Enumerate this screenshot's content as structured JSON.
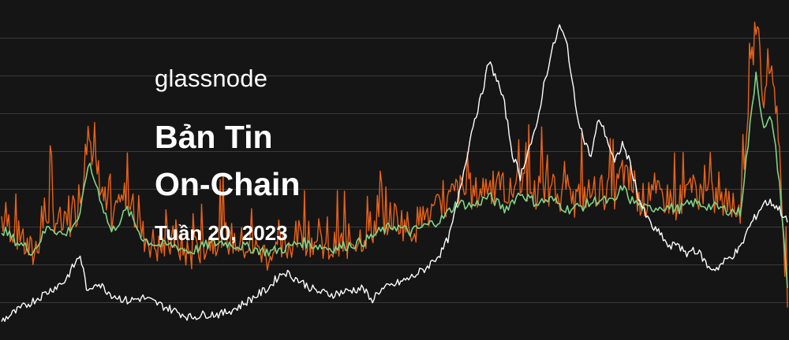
{
  "brand": "glassnode",
  "title_lines": [
    "Bản Tin",
    "On-Chain"
  ],
  "subtitle": "Tuần 20, 2023",
  "colors": {
    "background": "#151515",
    "grid": "#3a3a3a",
    "price_line": "#ffffff",
    "raw_series": "#e8621a",
    "smoothed_series": "#7ed487"
  },
  "chart_data": {
    "type": "line",
    "title": "",
    "xlabel": "",
    "ylabel": "",
    "grid": true,
    "legend": "none",
    "x_range": [
      0,
      100
    ],
    "y_range": [
      0,
      100
    ],
    "series": [
      {
        "role": "price",
        "color": "#ffffff",
        "x": [
          0,
          2,
          4,
          6,
          8,
          9,
          10,
          11,
          12,
          14,
          16,
          18,
          20,
          22,
          24,
          26,
          28,
          30,
          32,
          34,
          35,
          36,
          38,
          40,
          42,
          44,
          46,
          47,
          48,
          50,
          52,
          54,
          56,
          57,
          58,
          59,
          60,
          61,
          62,
          63,
          64,
          65,
          66,
          67,
          68,
          69,
          70,
          71,
          72,
          73,
          74,
          75,
          76,
          77,
          78,
          79,
          80,
          81,
          82,
          83,
          84,
          85,
          86,
          87,
          88,
          89,
          90,
          91,
          92,
          93,
          94,
          95,
          96,
          97,
          98,
          99,
          100
        ],
        "y": [
          4,
          7,
          10,
          13,
          16,
          20,
          24,
          12,
          16,
          12,
          10,
          11,
          9,
          7,
          5,
          6,
          6,
          8,
          11,
          14,
          17,
          19,
          16,
          13,
          12,
          13,
          14,
          10,
          13,
          15,
          17,
          20,
          25,
          30,
          40,
          52,
          64,
          72,
          83,
          78,
          70,
          55,
          48,
          56,
          62,
          76,
          86,
          94,
          88,
          70,
          60,
          54,
          66,
          60,
          52,
          58,
          52,
          42,
          36,
          32,
          30,
          26,
          28,
          24,
          26,
          24,
          20,
          20,
          22,
          24,
          26,
          32,
          36,
          40,
          40,
          38,
          34
        ]
      },
      {
        "role": "metric_raw",
        "color": "#e8621a",
        "x": [
          0,
          2,
          4,
          6,
          8,
          10,
          11,
          12,
          13,
          14,
          16,
          18,
          20,
          22,
          24,
          26,
          28,
          30,
          32,
          34,
          36,
          38,
          40,
          42,
          44,
          46,
          48,
          50,
          52,
          54,
          56,
          58,
          60,
          62,
          64,
          66,
          68,
          70,
          72,
          74,
          76,
          78,
          79,
          80,
          82,
          84,
          86,
          88,
          90,
          92,
          94,
          95,
          96,
          97,
          98,
          99,
          100
        ],
        "y": [
          36,
          30,
          24,
          38,
          32,
          40,
          62,
          52,
          42,
          32,
          44,
          30,
          26,
          28,
          24,
          28,
          30,
          28,
          26,
          24,
          26,
          30,
          28,
          26,
          28,
          30,
          34,
          36,
          32,
          36,
          38,
          44,
          42,
          46,
          40,
          48,
          42,
          44,
          40,
          42,
          44,
          42,
          50,
          44,
          40,
          42,
          40,
          44,
          42,
          40,
          38,
          70,
          96,
          72,
          84,
          52,
          8
        ]
      },
      {
        "role": "metric_smoothed",
        "color": "#7ed487",
        "x": [
          0,
          2,
          4,
          6,
          8,
          10,
          11,
          12,
          13,
          14,
          16,
          18,
          20,
          22,
          24,
          26,
          28,
          30,
          32,
          34,
          36,
          38,
          40,
          42,
          44,
          46,
          48,
          50,
          52,
          54,
          56,
          58,
          60,
          62,
          64,
          66,
          68,
          70,
          72,
          74,
          76,
          78,
          79,
          80,
          82,
          84,
          86,
          88,
          90,
          92,
          94,
          95,
          96,
          97,
          98,
          99,
          100
        ],
        "y": [
          32,
          28,
          25,
          33,
          30,
          36,
          52,
          46,
          38,
          31,
          38,
          29,
          27,
          27,
          25,
          27,
          28,
          27,
          26,
          25,
          26,
          28,
          27,
          26,
          27,
          28,
          31,
          33,
          31,
          33,
          35,
          40,
          39,
          42,
          38,
          43,
          40,
          41,
          38,
          39,
          41,
          40,
          45,
          41,
          38,
          39,
          38,
          40,
          39,
          38,
          37,
          58,
          80,
          62,
          66,
          46,
          14
        ]
      }
    ]
  }
}
